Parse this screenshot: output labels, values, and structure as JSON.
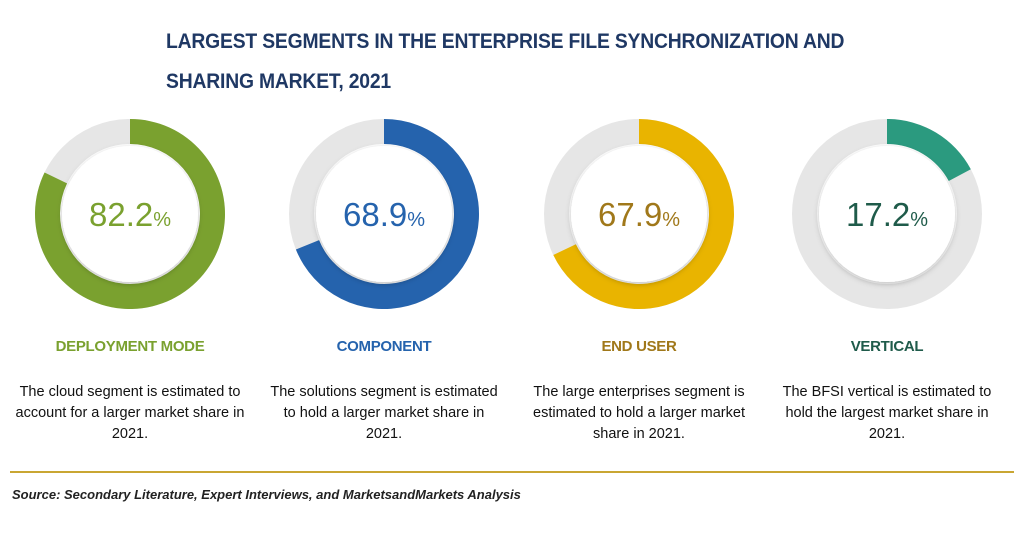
{
  "title": "LARGEST SEGMENTS IN THE ENTERPRISE FILE SYNCHRONIZATION AND SHARING MARKET, 2021",
  "chart_data": [
    {
      "type": "pie",
      "category": "DEPLOYMENT MODE",
      "value": 82.2,
      "value_label": "82.2",
      "unit": "%",
      "color": "#7aa12f",
      "text_color": "#7aa12f",
      "description": "The cloud segment is estimated to account for a larger market share in 2021."
    },
    {
      "type": "pie",
      "category": "COMPONENT",
      "value": 68.9,
      "value_label": "68.9",
      "unit": "%",
      "color": "#2563ad",
      "text_color": "#2563ad",
      "description": "The solutions segment is estimated to hold a larger market share in 2021."
    },
    {
      "type": "pie",
      "category": "END USER",
      "value": 67.9,
      "value_label": "67.9",
      "unit": "%",
      "color": "#e9b400",
      "text_color": "#a0781a",
      "description": "The large enterprises segment is estimated to hold a larger market share in 2021."
    },
    {
      "type": "pie",
      "category": "VERTICAL",
      "value": 17.2,
      "value_label": "17.2",
      "unit": "%",
      "color": "#2b9a7f",
      "text_color": "#1f5b4a",
      "description": "The BFSI vertical is estimated to hold the largest market share in 2021."
    }
  ],
  "source": "Source: Secondary Literature, Expert Interviews, and MarketsandMarkets Analysis",
  "colors": {
    "title": "#1f3864",
    "track": "#e6e6e6",
    "rule": "#c9a633"
  }
}
